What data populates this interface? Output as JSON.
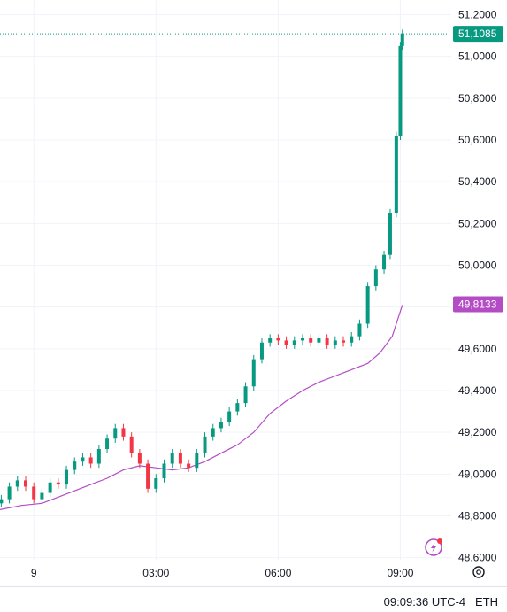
{
  "chart_data": {
    "type": "candlestick",
    "y_ticks": [
      "51,2000",
      "51,0000",
      "50,8000",
      "50,6000",
      "50,4000",
      "50,2000",
      "50,0000",
      "49,8000",
      "49,6000",
      "49,4000",
      "49,2000",
      "49,0000",
      "48,8000",
      "48,6000"
    ],
    "y_tick_values": [
      51.2,
      51.0,
      50.8,
      50.6,
      50.4,
      50.2,
      50.0,
      49.8,
      49.6,
      49.4,
      49.2,
      49.0,
      48.8,
      48.6
    ],
    "ylim": [
      48.59,
      51.27
    ],
    "x_ticks": [
      "9",
      "03:00",
      "06:00",
      "09:00"
    ],
    "x_tick_hours": [
      0,
      3,
      6,
      9
    ],
    "xlim_hours": [
      -0.83,
      10.25
    ],
    "last_price": {
      "label": "51,1085",
      "value": 51.1085,
      "color": "#089981"
    },
    "moving_average": {
      "label": "49,8133",
      "value": 49.8133,
      "color": "#b44cc6",
      "points": [
        [
          -0.83,
          48.83
        ],
        [
          -0.3,
          48.85
        ],
        [
          0.2,
          48.86
        ],
        [
          0.6,
          48.89
        ],
        [
          1.0,
          48.92
        ],
        [
          1.4,
          48.95
        ],
        [
          1.8,
          48.98
        ],
        [
          2.2,
          49.02
        ],
        [
          2.6,
          49.04
        ],
        [
          3.0,
          49.03
        ],
        [
          3.4,
          49.02
        ],
        [
          3.8,
          49.03
        ],
        [
          4.2,
          49.06
        ],
        [
          4.6,
          49.1
        ],
        [
          5.0,
          49.14
        ],
        [
          5.4,
          49.2
        ],
        [
          5.8,
          49.29
        ],
        [
          6.2,
          49.35
        ],
        [
          6.6,
          49.4
        ],
        [
          7.0,
          49.44
        ],
        [
          7.4,
          49.47
        ],
        [
          7.8,
          49.5
        ],
        [
          8.2,
          49.53
        ],
        [
          8.5,
          49.58
        ],
        [
          8.8,
          49.66
        ],
        [
          9.05,
          49.81
        ]
      ]
    },
    "candles": [
      [
        -0.8,
        48.86,
        48.88
      ],
      [
        -0.6,
        48.88,
        48.94
      ],
      [
        -0.4,
        48.94,
        48.97
      ],
      [
        -0.2,
        48.97,
        48.94
      ],
      [
        0.0,
        48.94,
        48.88
      ],
      [
        0.2,
        48.88,
        48.91
      ],
      [
        0.4,
        48.91,
        48.96
      ],
      [
        0.6,
        48.96,
        48.95
      ],
      [
        0.8,
        48.95,
        49.02
      ],
      [
        1.0,
        49.02,
        49.06
      ],
      [
        1.2,
        49.06,
        49.08
      ],
      [
        1.4,
        49.08,
        49.05
      ],
      [
        1.6,
        49.05,
        49.12
      ],
      [
        1.8,
        49.12,
        49.17
      ],
      [
        2.0,
        49.17,
        49.22
      ],
      [
        2.2,
        49.22,
        49.18
      ],
      [
        2.4,
        49.18,
        49.1
      ],
      [
        2.6,
        49.1,
        49.05
      ],
      [
        2.8,
        49.05,
        48.93
      ],
      [
        3.0,
        48.93,
        48.98
      ],
      [
        3.2,
        48.98,
        49.05
      ],
      [
        3.4,
        49.05,
        49.1
      ],
      [
        3.6,
        49.1,
        49.05
      ],
      [
        3.8,
        49.05,
        49.03
      ],
      [
        4.0,
        49.03,
        49.1
      ],
      [
        4.2,
        49.1,
        49.18
      ],
      [
        4.4,
        49.18,
        49.22
      ],
      [
        4.6,
        49.22,
        49.25
      ],
      [
        4.8,
        49.25,
        49.3
      ],
      [
        5.0,
        49.3,
        49.34
      ],
      [
        5.2,
        49.34,
        49.42
      ],
      [
        5.4,
        49.42,
        49.55
      ],
      [
        5.6,
        49.55,
        49.63
      ],
      [
        5.8,
        49.63,
        49.65
      ],
      [
        6.0,
        49.65,
        49.64
      ],
      [
        6.2,
        49.64,
        49.62
      ],
      [
        6.4,
        49.62,
        49.64
      ],
      [
        6.6,
        49.64,
        49.65
      ],
      [
        6.8,
        49.65,
        49.63
      ],
      [
        7.0,
        49.63,
        49.65
      ],
      [
        7.2,
        49.65,
        49.62
      ],
      [
        7.4,
        49.62,
        49.64
      ],
      [
        7.6,
        49.64,
        49.63
      ],
      [
        7.8,
        49.63,
        49.66
      ],
      [
        8.0,
        49.66,
        49.72
      ],
      [
        8.2,
        49.72,
        49.9
      ],
      [
        8.4,
        49.9,
        49.98
      ],
      [
        8.6,
        49.98,
        50.05
      ],
      [
        8.75,
        50.05,
        50.25
      ],
      [
        8.9,
        50.25,
        50.62
      ],
      [
        9.0,
        50.62,
        51.05
      ],
      [
        9.05,
        51.05,
        51.1085
      ]
    ],
    "title": "",
    "xlabel": "",
    "ylabel": "",
    "grid": true
  },
  "footer": {
    "time": "09:09:36 UTC-4",
    "session": "ETH"
  },
  "icons": {
    "flash": "lightning-icon",
    "settings": "gear-icon"
  }
}
